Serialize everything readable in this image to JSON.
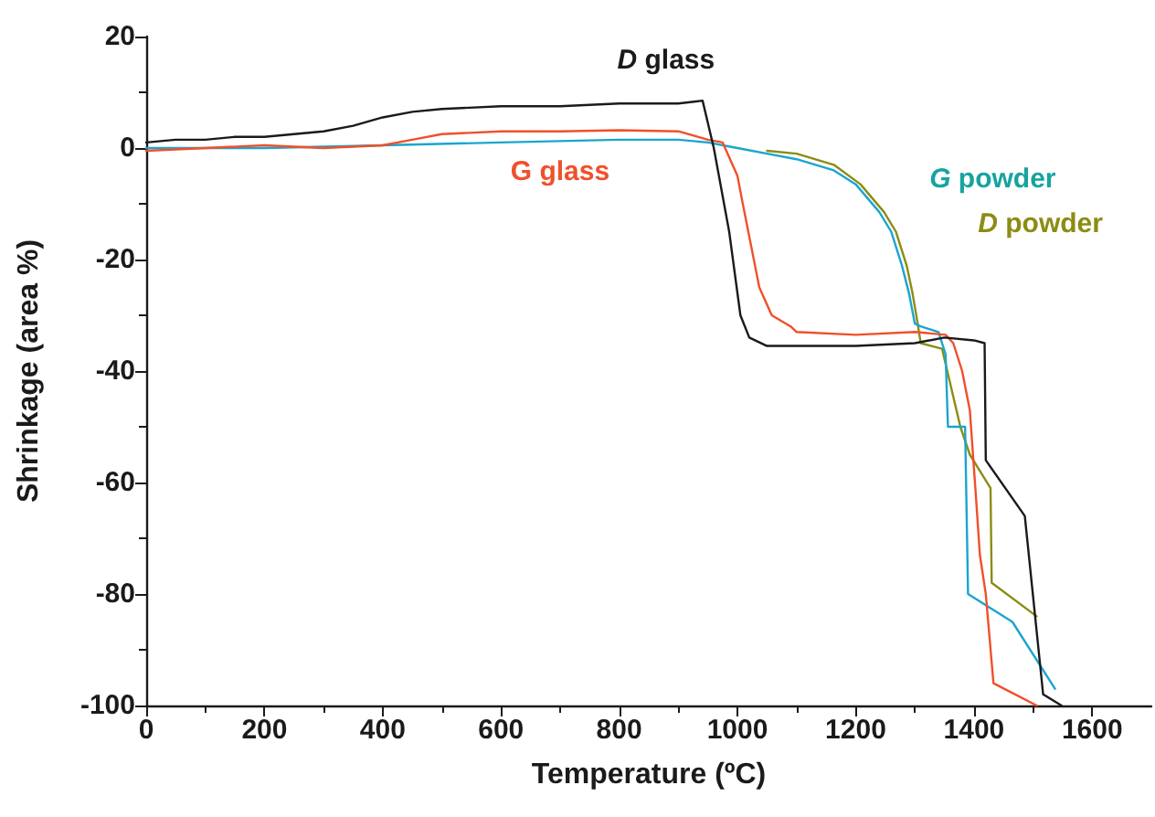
{
  "chart_data": {
    "type": "line",
    "xlabel": "Temperature (ºC)",
    "ylabel": "Shrinkage (area %)",
    "xlim": [
      0,
      1700
    ],
    "ylim": [
      -100,
      20
    ],
    "xticks": [
      0,
      200,
      400,
      600,
      800,
      1000,
      1200,
      1400,
      1600
    ],
    "yticks": [
      -100,
      -80,
      -60,
      -40,
      -20,
      0,
      20
    ],
    "grid": false,
    "legend": false,
    "marker": "none",
    "line_style": "solid",
    "series": [
      {
        "name": "D glass",
        "color": "#1a1a1a",
        "x": [
          0,
          50,
          100,
          150,
          200,
          250,
          300,
          350,
          400,
          450,
          500,
          600,
          700,
          800,
          900,
          941,
          960,
          986,
          1005,
          1020,
          1050,
          1100,
          1200,
          1300,
          1350,
          1400,
          1418,
          1420,
          1486,
          1517,
          1548
        ],
        "values": [
          1,
          1.5,
          1.5,
          2,
          2,
          2.5,
          3,
          4,
          5.5,
          6.5,
          7,
          7.5,
          7.5,
          8,
          8,
          8.5,
          0,
          -15,
          -30,
          -34,
          -35.5,
          -35.5,
          -35.5,
          -35,
          -34,
          -34.5,
          -35,
          -56,
          -66,
          -98,
          -100
        ]
      },
      {
        "name": "G glass",
        "color": "#f0502a",
        "x": [
          0,
          100,
          200,
          300,
          400,
          450,
          500,
          600,
          700,
          800,
          900,
          950,
          975,
          1000,
          1009,
          1037,
          1058,
          1090,
          1100,
          1200,
          1300,
          1352,
          1365,
          1380,
          1393,
          1403,
          1410,
          1420,
          1433,
          1506
        ],
        "values": [
          -0.5,
          0,
          0.5,
          0,
          0.5,
          1.5,
          2.5,
          3,
          3,
          3.2,
          3,
          1.5,
          1,
          -5,
          -10,
          -25,
          -30,
          -32,
          -33,
          -33.5,
          -33,
          -33.5,
          -35,
          -40,
          -47,
          -62,
          -73,
          -80,
          -96,
          -100
        ]
      },
      {
        "name": "G powder",
        "color": "#1aa5d0",
        "x": [
          0,
          200,
          400,
          600,
          800,
          900,
          950,
          1000,
          1050,
          1100,
          1163,
          1200,
          1240,
          1260,
          1278,
          1290,
          1300,
          1310,
          1340,
          1352,
          1356,
          1385,
          1390,
          1465,
          1537
        ],
        "values": [
          0,
          0,
          0.5,
          1,
          1.5,
          1.5,
          1,
          0,
          -1,
          -2,
          -4,
          -6.5,
          -11.5,
          -15,
          -21,
          -26,
          -31.5,
          -32,
          -33,
          -37,
          -50,
          -50,
          -80,
          -85,
          -97
        ]
      },
      {
        "name": "D powder",
        "color": "#8c8c14",
        "x": [
          1050,
          1100,
          1163,
          1208,
          1248,
          1268,
          1286,
          1296,
          1304,
          1310,
          1346,
          1377,
          1393,
          1428,
          1430,
          1506
        ],
        "values": [
          -0.5,
          -1,
          -3,
          -6.5,
          -11.5,
          -15,
          -21,
          -26,
          -31,
          -35,
          -36,
          -50,
          -55,
          -61,
          -78,
          -84
        ]
      }
    ]
  }
}
